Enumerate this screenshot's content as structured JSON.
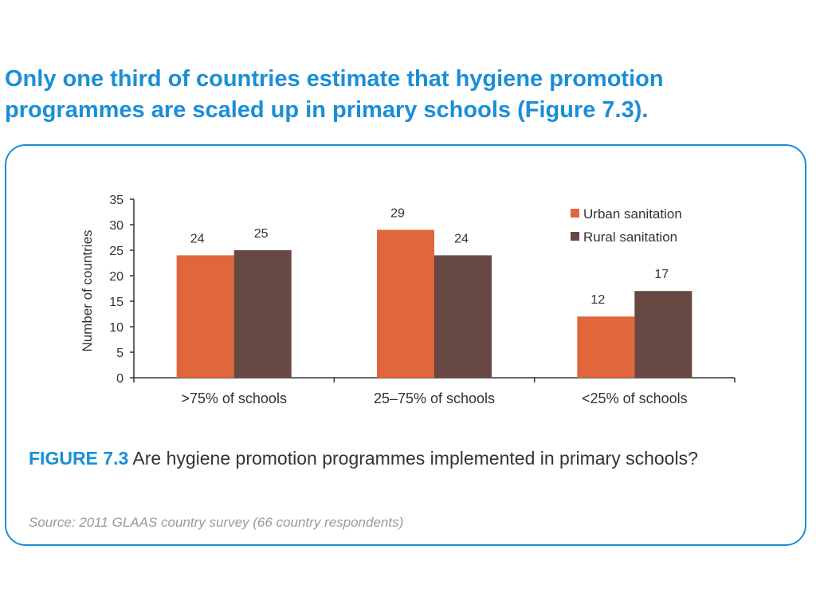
{
  "headline": "Only one third of countries estimate that hygiene promotion programmes are scaled up in primary schools (Figure 7.3).",
  "caption": {
    "label": "FIGURE 7.3",
    "text": "Are hygiene promotion programmes implemented in primary schools?"
  },
  "source": "Source: 2011 GLAAS country survey (66 country respondents)",
  "colors": {
    "accent": "#1a8ed8",
    "urban": "#e0663c",
    "rural": "#674842"
  },
  "chart_data": {
    "type": "bar",
    "ylabel": "Number of countries",
    "xlabel": "",
    "ylim": [
      0,
      35
    ],
    "yticks": [
      0,
      5,
      10,
      15,
      20,
      25,
      30,
      35
    ],
    "categories": [
      ">75% of schools",
      "25–75% of schools",
      "<25% of schools"
    ],
    "series": [
      {
        "name": "Urban sanitation",
        "color": "#e0663c",
        "values": [
          24,
          29,
          12
        ]
      },
      {
        "name": "Rural sanitation",
        "color": "#674842",
        "values": [
          25,
          24,
          17
        ]
      }
    ],
    "legend": "top-right",
    "grid": false
  }
}
